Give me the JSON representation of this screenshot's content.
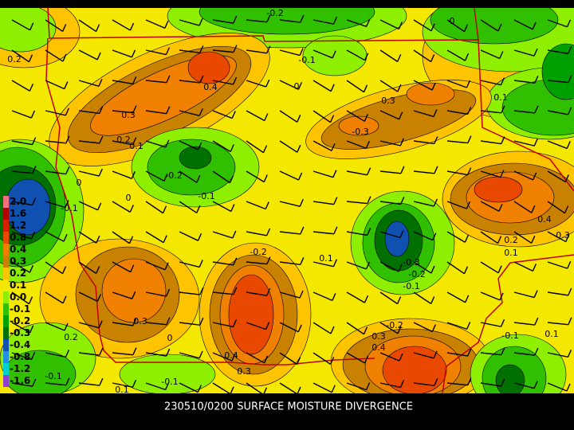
{
  "title": "230510/0200 SURFACE MOISTURE DIVERGENCE",
  "legend": {
    "items": [
      {
        "label": "2.0",
        "color": "#f07080"
      },
      {
        "label": "1.6",
        "color": "#b00000"
      },
      {
        "label": "1.2",
        "color": "#d82000"
      },
      {
        "label": "0.8",
        "color": "#e84800"
      },
      {
        "label": "0.4",
        "color": "#f08000"
      },
      {
        "label": "0.3",
        "color": "#c88200"
      },
      {
        "label": "0.2",
        "color": "#ffc400"
      },
      {
        "label": "0.1",
        "color": "#f4e800"
      },
      {
        "label": "0.0",
        "color": "#8ef000"
      },
      {
        "label": "-0.1",
        "color": "#30c000"
      },
      {
        "label": "-0.2",
        "color": "#00a000"
      },
      {
        "label": "-0.3",
        "color": "#007000"
      },
      {
        "label": "-0.4",
        "color": "#1050b0"
      },
      {
        "label": "-0.8",
        "color": "#2090e0"
      },
      {
        "label": "-1.2",
        "color": "#00d0d0"
      },
      {
        "label": "-1.6",
        "color": "#9040d0"
      }
    ]
  },
  "contour_labels": [
    "0.2",
    "-0.2",
    "0",
    "-0.1",
    "0.4",
    "0",
    "0.3",
    "0.1",
    "0.3",
    "0.2",
    "0.1",
    "-0.3",
    "-0.2",
    "-0.1",
    "0",
    "0",
    "-0.1",
    "0.4",
    "0.3",
    "0.2",
    "0.1",
    "-0.2",
    "0.1",
    "-0.3",
    "-0.2",
    "-0.1",
    "0.3",
    "-0.2",
    "0.3",
    "0.4",
    "-0.1",
    "0.2",
    "0",
    "0.4",
    "-0.1",
    "0.3",
    "-0.1",
    "0.1",
    "0.1"
  ]
}
